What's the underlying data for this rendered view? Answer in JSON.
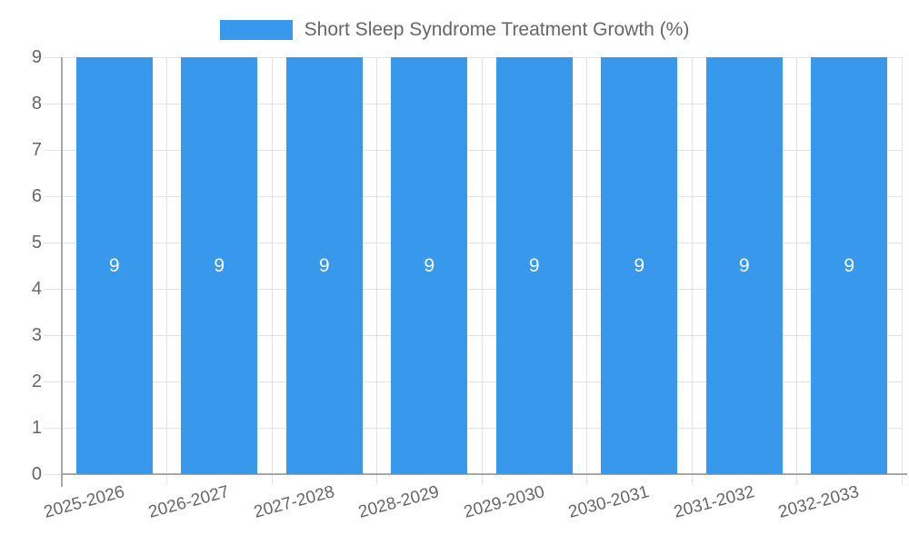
{
  "colors": {
    "bar": "#3898EC",
    "grid": "#E3E3E3",
    "axis": "#A7A7A7",
    "tick_text": "#666666",
    "bar_label_text": "#FFFFFF"
  },
  "chart_data": {
    "type": "bar",
    "title": "",
    "legend": [
      "Short Sleep Syndrome Treatment Growth (%)"
    ],
    "legend_position": "top",
    "categories": [
      "2025-2026",
      "2026-2027",
      "2027-2028",
      "2028-2029",
      "2029-2030",
      "2030-2031",
      "2031-2032",
      "2032-2033"
    ],
    "values": [
      9,
      9,
      9,
      9,
      9,
      9,
      9,
      9
    ],
    "bar_labels": [
      "9",
      "9",
      "9",
      "9",
      "9",
      "9",
      "9",
      "9"
    ],
    "xlabel": "",
    "ylabel": "",
    "ylim": [
      0,
      9
    ],
    "yticks": [
      0,
      1,
      2,
      3,
      4,
      5,
      6,
      7,
      8,
      9
    ],
    "grid": true
  }
}
